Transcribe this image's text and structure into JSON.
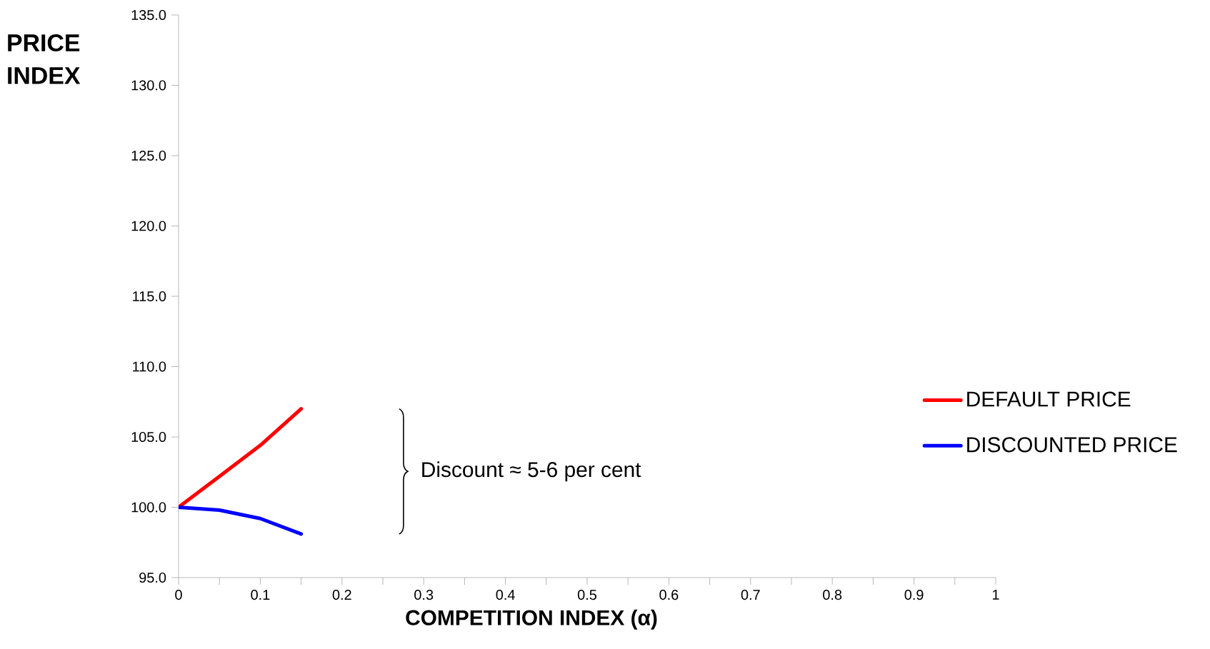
{
  "chart_data": {
    "type": "line",
    "xlabel": "COMPETITION INDEX (α)",
    "ylabel": "PRICE INDEX",
    "x": [
      0,
      0.05,
      0.1,
      0.15
    ],
    "series": [
      {
        "name": "DEFAULT PRICE",
        "color": "#ff0000",
        "values": [
          100.0,
          102.2,
          104.4,
          107.0
        ]
      },
      {
        "name": "DISCOUNTED PRICE",
        "color": "#0000ff",
        "values": [
          100.0,
          99.8,
          99.2,
          98.1
        ]
      }
    ],
    "xlim": [
      0,
      1
    ],
    "ylim": [
      95,
      135
    ],
    "xticks": [
      0,
      {
        "value": 0.05,
        "label": null
      },
      0.1,
      {
        "value": 0.15,
        "label": null
      },
      0.2,
      {
        "value": 0.25,
        "label": null
      },
      0.3,
      {
        "value": 0.35,
        "label": null
      },
      0.4,
      {
        "value": 0.45,
        "label": null
      },
      0.5,
      {
        "value": 0.55,
        "label": null
      },
      0.6,
      {
        "value": 0.65,
        "label": null
      },
      0.7,
      {
        "value": 0.75,
        "label": null
      },
      0.8,
      {
        "value": 0.85,
        "label": null
      },
      0.9,
      {
        "value": 0.95,
        "label": null
      },
      1
    ],
    "yticks": [
      {
        "value": 95,
        "label": "95.0"
      },
      {
        "value": 100,
        "label": "100.0"
      },
      {
        "value": 105,
        "label": "105.0"
      },
      {
        "value": 110,
        "label": "110.0"
      },
      {
        "value": 115,
        "label": "115.0"
      },
      {
        "value": 120,
        "label": "120.0"
      },
      {
        "value": 125,
        "label": "125.0"
      },
      {
        "value": 130,
        "label": "130.0"
      },
      {
        "value": 135,
        "label": "135.0"
      }
    ],
    "annotations": [
      "Discount ≈ 5-6 per cent"
    ],
    "legend": "right",
    "grid": false,
    "marker": "none",
    "line_style": "solid"
  }
}
